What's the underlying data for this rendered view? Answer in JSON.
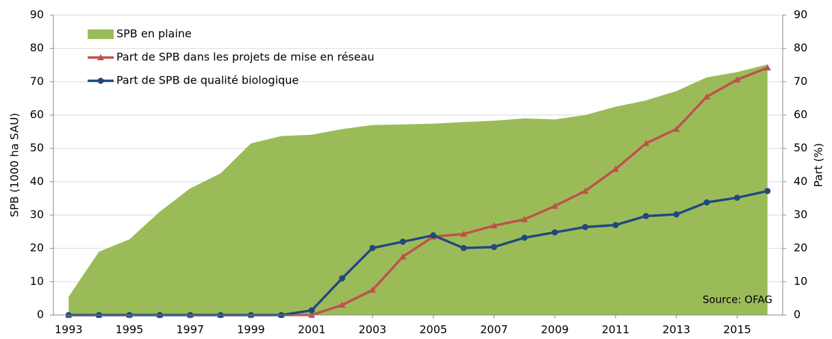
{
  "chart_data": {
    "type": "line",
    "y_label": "SPB (1000 ha SAU)",
    "y2_label": "Part (%)",
    "annotation": "Source: OFAG",
    "x": [
      1993,
      1994,
      1995,
      1996,
      1997,
      1998,
      1999,
      2000,
      2001,
      2002,
      2003,
      2004,
      2005,
      2006,
      2007,
      2008,
      2009,
      2010,
      2011,
      2012,
      2013,
      2014,
      2015,
      2016
    ],
    "xlim": [
      1992.5,
      2016.5
    ],
    "xticks": [
      1993,
      1995,
      1997,
      1999,
      2001,
      2003,
      2005,
      2007,
      2009,
      2011,
      2013,
      2015
    ],
    "ylim": [
      0,
      90
    ],
    "yticks": [
      0,
      10,
      20,
      30,
      40,
      50,
      60,
      70,
      80,
      90
    ],
    "y2lim": [
      0,
      90
    ],
    "y2ticks": [
      0,
      10,
      20,
      30,
      40,
      50,
      60,
      70,
      80,
      90
    ],
    "grid": true,
    "legend": "upper left",
    "series": [
      {
        "name": "SPB en plaine",
        "type": "area",
        "color": "#9bbb59",
        "values": [
          5.5,
          19,
          22.7,
          31,
          38,
          42.5,
          51.5,
          53.7,
          54.1,
          55.8,
          57,
          57.2,
          57.4,
          57.9,
          58.3,
          59,
          58.7,
          60,
          62.5,
          64.4,
          67.2,
          71.3,
          72.9,
          75.2
        ]
      },
      {
        "name": "Part de SPB dans les projets de mise en réseau",
        "type": "line",
        "marker": "triangle",
        "color": "#c0504d",
        "axis": "y2",
        "values": [
          0,
          0,
          0,
          0,
          0,
          0,
          0,
          0,
          0,
          3,
          7.5,
          17.5,
          23.5,
          24.3,
          26.8,
          28.7,
          32.7,
          37.2,
          43.8,
          51.5,
          55.8,
          65.5,
          70.6,
          74.2
        ]
      },
      {
        "name": "Part de SPB de qualité biologique",
        "type": "line",
        "marker": "circle",
        "color": "#1f497d",
        "axis": "y2",
        "values": [
          0,
          0,
          0,
          0,
          0,
          0,
          0,
          0,
          1.4,
          11,
          20.1,
          22,
          23.9,
          20.1,
          20.4,
          23.2,
          24.8,
          26.4,
          27,
          29.7,
          30.2,
          33.8,
          35.2,
          37.2
        ]
      }
    ]
  }
}
